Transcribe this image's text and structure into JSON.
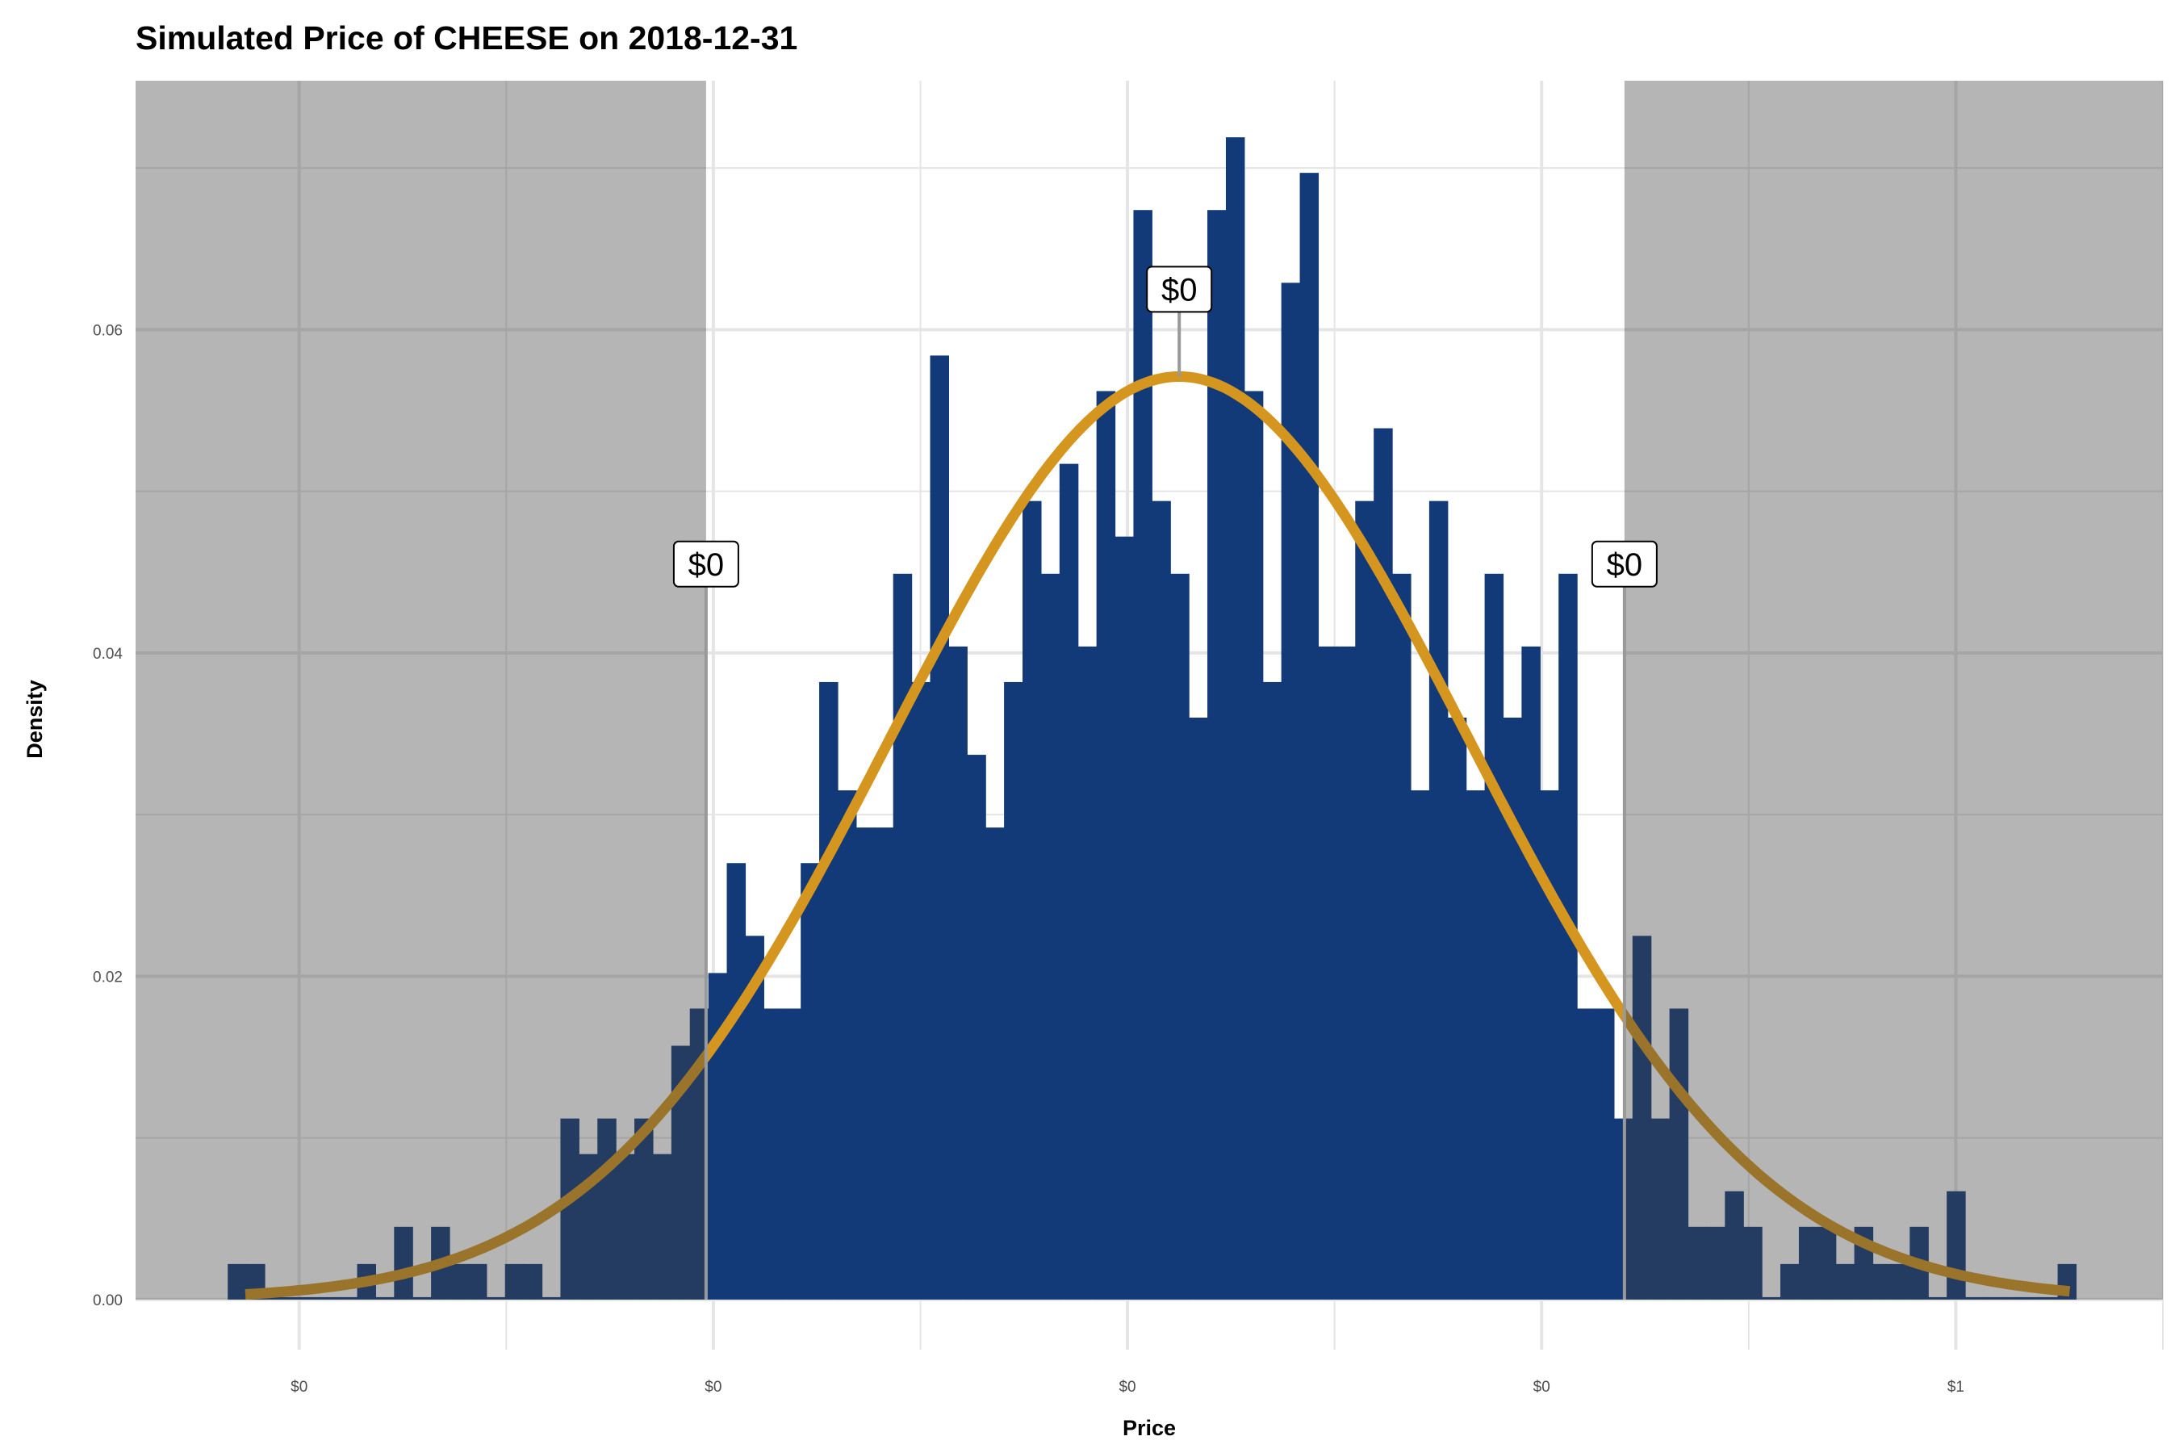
{
  "chart_data": {
    "type": "bar",
    "subtype": "histogram with fitted normal curve",
    "title": "Simulated Price of CHEESE on 2018-12-31",
    "xlabel": "Price",
    "ylabel": "Density",
    "xlim": [
      0.121,
      1.1
    ],
    "ylim": [
      -0.0031,
      0.0754
    ],
    "x_ticks": [
      {
        "value": 0.2,
        "label": "$0"
      },
      {
        "value": 0.4,
        "label": "$0"
      },
      {
        "value": 0.6,
        "label": "$0"
      },
      {
        "value": 0.8,
        "label": "$0"
      },
      {
        "value": 1.0,
        "label": "$1"
      }
    ],
    "x_minor_ticks": [
      0.3,
      0.5,
      0.7,
      0.9,
      1.1
    ],
    "y_ticks": [
      {
        "value": 0.0,
        "label": "0.00"
      },
      {
        "value": 0.02,
        "label": "0.02"
      },
      {
        "value": 0.04,
        "label": "0.04"
      },
      {
        "value": 0.06,
        "label": "0.06"
      }
    ],
    "y_minor_ticks": [
      0.01,
      0.03,
      0.05,
      0.07
    ],
    "grid": true,
    "bins": {
      "start": 0.1655,
      "width": 0.008926,
      "density": [
        0.0022,
        0.0022,
        0,
        0,
        0,
        0,
        0,
        0.0022,
        0,
        0.0045,
        0,
        0.0045,
        0.0022,
        0.0022,
        0,
        0.0022,
        0.0022,
        0,
        0.0112,
        0.009,
        0.0112,
        0.009,
        0.0112,
        0.009,
        0.0157,
        0.018,
        0.0202,
        0.027,
        0.0225,
        0.018,
        0.018,
        0.027,
        0.0382,
        0.0315,
        0.0292,
        0.0292,
        0.0449,
        0.0382,
        0.0584,
        0.0404,
        0.0337,
        0.0292,
        0.0382,
        0.0494,
        0.0449,
        0.0517,
        0.0404,
        0.0562,
        0.0472,
        0.0674,
        0.0494,
        0.0449,
        0.036,
        0.0674,
        0.0719,
        0.0562,
        0.0382,
        0.0629,
        0.0697,
        0.0404,
        0.0404,
        0.0494,
        0.0539,
        0.0449,
        0.0315,
        0.0494,
        0.036,
        0.0315,
        0.0449,
        0.036,
        0.0404,
        0.0315,
        0.0449,
        0.018,
        0.018,
        0.0112,
        0.0225,
        0.0112,
        0.018,
        0.0045,
        0.0045,
        0.0067,
        0.0045,
        0,
        0.0022,
        0.0045,
        0.0045,
        0.0022,
        0.0045,
        0.0022,
        0.0022,
        0.0045,
        0,
        0.0067,
        0,
        0,
        0,
        0,
        0,
        0.0022
      ]
    },
    "normal_fit": {
      "mean": 0.625,
      "sd": 0.14,
      "peak_density": 0.0571,
      "x_range": [
        0.174,
        1.055
      ]
    },
    "shaded_tails": [
      {
        "from": "min",
        "to": 0.3965
      },
      {
        "from": 0.84,
        "to": "max"
      }
    ],
    "annotations": [
      {
        "name": "lower-quantile",
        "x": 0.3965,
        "label": "$0",
        "label_y": 0.0455
      },
      {
        "name": "mean",
        "x": 0.625,
        "label": "$0",
        "label_y": 0.0625
      },
      {
        "name": "upper-quantile",
        "x": 0.84,
        "label": "$0",
        "label_y": 0.0455
      }
    ],
    "colors": {
      "bars": "#123A78",
      "curve": "#D4961E",
      "shade": "#404040",
      "grid": "#e5e5e5"
    }
  }
}
